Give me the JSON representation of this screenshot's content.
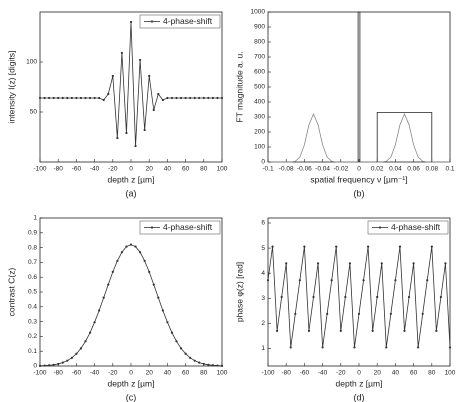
{
  "chart_data": [
    {
      "type": "line",
      "caption": "(a)",
      "xlabel": "depth z [µm]",
      "ylabel": "intensity I(z) [digits]",
      "x": [
        -100,
        -95,
        -90,
        -85,
        -80,
        -75,
        -70,
        -65,
        -60,
        -55,
        -50,
        -45,
        -40,
        -35,
        -30,
        -25,
        -20,
        -15,
        -10,
        -5,
        0,
        5,
        10,
        15,
        20,
        25,
        30,
        35,
        40,
        45,
        50,
        55,
        60,
        65,
        70,
        75,
        80,
        85,
        90,
        95,
        100
      ],
      "series": [
        {
          "name": "4-phase-shift",
          "color": "#333333",
          "marker": true,
          "values": [
            64,
            64,
            64,
            64,
            64,
            64,
            64,
            64,
            64,
            64,
            64,
            64,
            64,
            64,
            62,
            68,
            86,
            24,
            109,
            29,
            140,
            16,
            102,
            32,
            86,
            52,
            68,
            62,
            64,
            64,
            64,
            64,
            64,
            64,
            64,
            64,
            64,
            64,
            64,
            64,
            64
          ]
        }
      ],
      "xlim": [
        -100,
        100
      ],
      "xticks": [
        -100,
        -80,
        -60,
        -40,
        -20,
        0,
        20,
        40,
        60,
        80,
        100
      ],
      "ylim": [
        0,
        150
      ],
      "yticks": [
        50,
        100
      ],
      "legend": "upper right"
    },
    {
      "type": "line",
      "caption": "(b)",
      "xlabel": "spatial frequency ν [µm⁻¹]",
      "ylabel": "FT magnitude a. u.",
      "series": [
        {
          "color": "#888888",
          "marker": false,
          "x": [
            -0.1,
            -0.095,
            -0.09,
            -0.085,
            -0.08,
            -0.075,
            -0.07,
            -0.065,
            -0.06,
            -0.055,
            -0.05,
            -0.045,
            -0.04,
            -0.035,
            -0.03,
            -0.025,
            -0.02,
            -0.015,
            -0.01,
            -0.005,
            0,
            0.005,
            0.01,
            0.015,
            0.02,
            0.025,
            0.03,
            0.035,
            0.04,
            0.045,
            0.05,
            0.055,
            0.06,
            0.065,
            0.07,
            0.075,
            0.08,
            0.085,
            0.09,
            0.095,
            0.1
          ],
          "values": [
            0,
            0,
            0,
            0,
            0,
            0,
            5,
            32,
            115,
            248,
            320,
            248,
            115,
            32,
            5,
            0,
            0,
            0,
            0,
            0,
            0,
            0,
            0,
            0,
            0,
            0,
            5,
            32,
            115,
            248,
            320,
            248,
            115,
            32,
            5,
            0,
            0,
            0,
            0,
            0,
            0
          ]
        },
        {
          "color": "#222222",
          "marker": false,
          "x": [
            -0.001,
            -0.001,
            0.001,
            0.001
          ],
          "values": [
            0,
            1000,
            1000,
            0
          ]
        },
        {
          "color": "#222222",
          "marker": false,
          "x": [
            0.02,
            0.02,
            0.08,
            0.08
          ],
          "values": [
            0,
            330,
            330,
            0
          ]
        }
      ],
      "xlim": [
        -0.1,
        0.1
      ],
      "xticks": [
        -0.1,
        -0.08,
        -0.06,
        -0.04,
        -0.02,
        0,
        0.02,
        0.04,
        0.06,
        0.08,
        0.1
      ],
      "ylim": [
        0,
        1000
      ],
      "yticks": [
        0,
        100,
        200,
        300,
        400,
        500,
        600,
        700,
        800,
        900,
        1000
      ]
    },
    {
      "type": "line",
      "caption": "(c)",
      "xlabel": "depth z [µm]",
      "ylabel": "contrast C(z)",
      "x": [
        -100,
        -95,
        -90,
        -85,
        -80,
        -75,
        -70,
        -65,
        -60,
        -55,
        -50,
        -45,
        -40,
        -35,
        -30,
        -25,
        -20,
        -15,
        -10,
        -5,
        0,
        5,
        10,
        15,
        20,
        25,
        30,
        35,
        40,
        45,
        50,
        55,
        60,
        65,
        70,
        75,
        80,
        85,
        90,
        95,
        100
      ],
      "series": [
        {
          "name": "4-phase-shift",
          "color": "#333333",
          "marker": true,
          "values": [
            0.001,
            0.003,
            0.005,
            0.008,
            0.014,
            0.023,
            0.036,
            0.055,
            0.083,
            0.119,
            0.167,
            0.225,
            0.296,
            0.375,
            0.462,
            0.55,
            0.636,
            0.71,
            0.769,
            0.807,
            0.82,
            0.807,
            0.769,
            0.71,
            0.636,
            0.55,
            0.462,
            0.375,
            0.296,
            0.225,
            0.167,
            0.119,
            0.083,
            0.055,
            0.036,
            0.023,
            0.014,
            0.008,
            0.005,
            0.003,
            0.001
          ]
        }
      ],
      "xlim": [
        -100,
        100
      ],
      "xticks": [
        -100,
        -80,
        -60,
        -40,
        -20,
        0,
        20,
        40,
        60,
        80,
        100
      ],
      "ylim": [
        0,
        1
      ],
      "yticks": [
        0,
        0.1,
        0.2,
        0.3,
        0.4,
        0.5,
        0.6,
        0.7,
        0.8,
        0.9,
        1
      ],
      "legend": "upper right"
    },
    {
      "type": "line",
      "caption": "(d)",
      "xlabel": "depth z [µm]",
      "ylabel": "phase φ(z) [rad]",
      "x": [
        -100,
        -95,
        -90,
        -85,
        -80,
        -75,
        -70,
        -65,
        -60,
        -55,
        -50,
        -45,
        -40,
        -35,
        -30,
        -25,
        -20,
        -15,
        -10,
        -5,
        0,
        5,
        10,
        15,
        20,
        25,
        30,
        35,
        40,
        45,
        50,
        55,
        60,
        65,
        70,
        75,
        80,
        85,
        90,
        95,
        100
      ],
      "series": [
        {
          "name": "4-phase-shift",
          "color": "#333333",
          "marker": true,
          "values": [
            3.72,
            5.06,
            1.7,
            3.05,
            4.39,
            1.04,
            2.38,
            3.72,
            5.06,
            1.7,
            3.05,
            4.39,
            1.04,
            2.38,
            3.72,
            5.06,
            1.7,
            3.05,
            4.39,
            1.04,
            2.38,
            3.72,
            5.06,
            1.7,
            3.05,
            4.39,
            1.04,
            2.38,
            3.72,
            5.06,
            1.7,
            3.05,
            4.39,
            1.04,
            2.38,
            3.72,
            5.06,
            1.7,
            3.05,
            4.39,
            1.04
          ]
        }
      ],
      "xlim": [
        -100,
        100
      ],
      "xticks": [
        -100,
        -80,
        -60,
        -40,
        -20,
        0,
        20,
        40,
        60,
        80,
        100
      ],
      "ylim": [
        0.3,
        6.2
      ],
      "yticks": [
        1,
        2,
        3,
        4,
        5,
        6
      ],
      "legend": "upper right"
    }
  ]
}
